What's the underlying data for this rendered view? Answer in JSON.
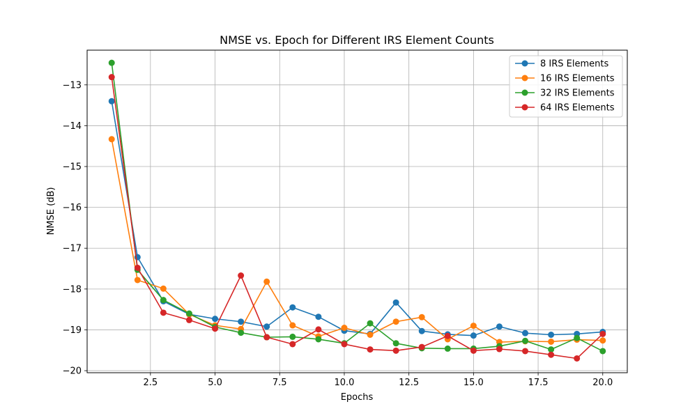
{
  "chart_data": {
    "type": "line",
    "title": "NMSE vs. Epoch for Different IRS Element Counts",
    "xlabel": "Epochs",
    "ylabel": "NMSE (dB)",
    "xlim": [
      0.05,
      20.95
    ],
    "ylim": [
      -20.05,
      -12.15
    ],
    "xticks": [
      2.5,
      5.0,
      7.5,
      10.0,
      12.5,
      15.0,
      17.5,
      20.0
    ],
    "xtick_labels": [
      "2.5",
      "5.0",
      "7.5",
      "10.0",
      "12.5",
      "15.0",
      "17.5",
      "20.0"
    ],
    "yticks": [
      -20,
      -19,
      -18,
      -17,
      -16,
      -15,
      -14,
      -13
    ],
    "ytick_labels": [
      "−20",
      "−19",
      "−18",
      "−17",
      "−16",
      "−15",
      "−14",
      "−13"
    ],
    "grid": true,
    "legend_position": "top-right",
    "x": [
      1,
      2,
      3,
      4,
      5,
      6,
      7,
      8,
      9,
      10,
      11,
      12,
      13,
      14,
      15,
      16,
      17,
      18,
      19,
      20
    ],
    "series": [
      {
        "name": "8 IRS Elements",
        "color": "#1f77b4",
        "values": [
          -13.4,
          -17.22,
          -18.3,
          -18.62,
          -18.73,
          -18.8,
          -18.92,
          -18.45,
          -18.68,
          -19.02,
          -19.1,
          -18.33,
          -19.03,
          -19.11,
          -19.14,
          -18.92,
          -19.08,
          -19.12,
          -19.1,
          -19.05
        ]
      },
      {
        "name": "16 IRS Elements",
        "color": "#ff7f0e",
        "values": [
          -14.33,
          -17.78,
          -17.99,
          -18.62,
          -18.89,
          -18.98,
          -17.82,
          -18.89,
          -19.16,
          -18.95,
          -19.12,
          -18.8,
          -18.69,
          -19.23,
          -18.9,
          -19.3,
          -19.28,
          -19.29,
          -19.24,
          -19.26
        ]
      },
      {
        "name": "32 IRS Elements",
        "color": "#2ca02c",
        "values": [
          -12.46,
          -17.53,
          -18.27,
          -18.6,
          -18.93,
          -19.07,
          -19.18,
          -19.17,
          -19.23,
          -19.33,
          -18.84,
          -19.33,
          -19.45,
          -19.46,
          -19.46,
          -19.4,
          -19.27,
          -19.48,
          -19.2,
          -19.52
        ]
      },
      {
        "name": "64 IRS Elements",
        "color": "#d62728",
        "values": [
          -12.81,
          -17.48,
          -18.58,
          -18.76,
          -18.97,
          -17.67,
          -19.18,
          -19.35,
          -18.99,
          -19.35,
          -19.48,
          -19.51,
          -19.42,
          -19.15,
          -19.51,
          -19.47,
          -19.52,
          -19.61,
          -19.7,
          -19.1
        ]
      }
    ]
  }
}
